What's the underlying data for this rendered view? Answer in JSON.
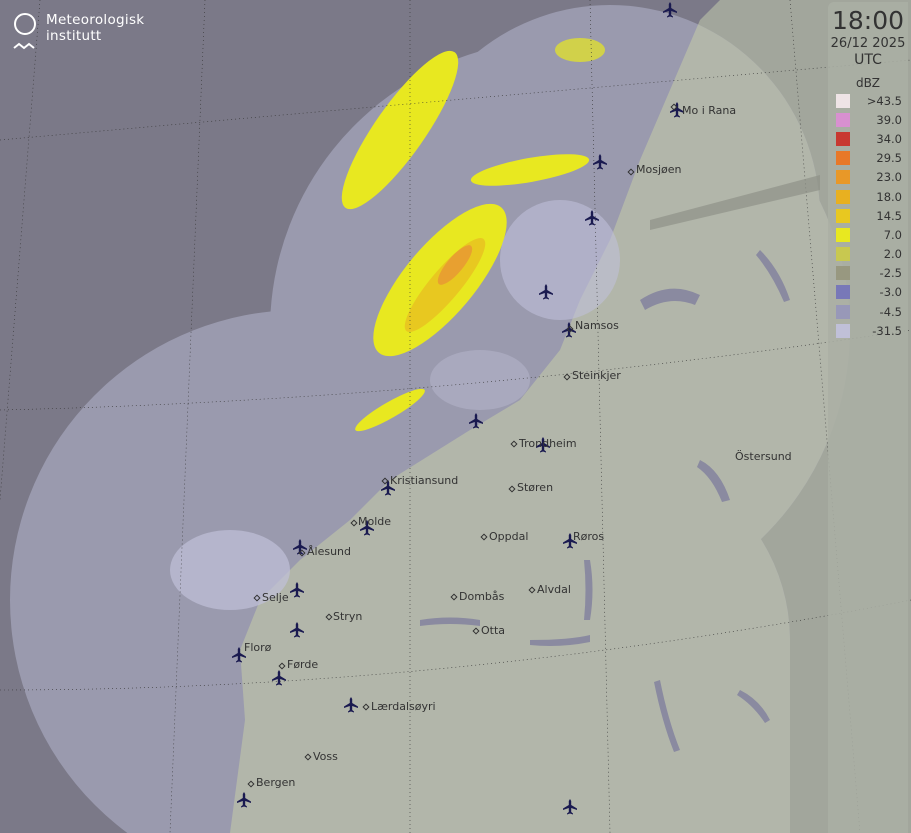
{
  "logo": {
    "line1": "Meteorologisk",
    "line2": "institutt"
  },
  "legend": {
    "time": "18:00",
    "date": "26/12 2025",
    "timezone": "UTC",
    "unit": "dBZ",
    "levels": [
      {
        "label": ">43.5",
        "color": "#efe4e6"
      },
      {
        "label": "39.0",
        "color": "#d890d0"
      },
      {
        "label": "34.0",
        "color": "#c83830"
      },
      {
        "label": "29.5",
        "color": "#e87828"
      },
      {
        "label": "23.0",
        "color": "#e89828"
      },
      {
        "label": "18.0",
        "color": "#e8b020"
      },
      {
        "label": "14.5",
        "color": "#e8c820"
      },
      {
        "label": "7.0",
        "color": "#e8e820"
      },
      {
        "label": "2.0",
        "color": "#c8c850"
      },
      {
        "label": "-2.5",
        "color": "#989880"
      },
      {
        "label": "-3.0",
        "color": "#7878b8"
      },
      {
        "label": "-4.5",
        "color": "#9898b8"
      },
      {
        "label": "-31.5",
        "color": "#c0c0d8"
      }
    ]
  },
  "places": [
    "Mo i Rana",
    "Mosjøen",
    "Namsos",
    "Steinkjer",
    "Trondheim",
    "Östersund",
    "Kristiansund",
    "Støren",
    "Molde",
    "Ålesund",
    "Oppdal",
    "Røros",
    "Selje",
    "Stryn",
    "Alvdal",
    "Dombås",
    "Florø",
    "Otta",
    "Førde",
    "Lærdalsøyri",
    "Voss",
    "Bergen"
  ],
  "colors": {
    "background": "#7b7988",
    "coverage_sea": "#9a9aae",
    "land_covered": "#b2b6aa",
    "land_uncovered": "#a2a69c",
    "water": "#8a8aa0",
    "airport": "#1a1a50"
  }
}
